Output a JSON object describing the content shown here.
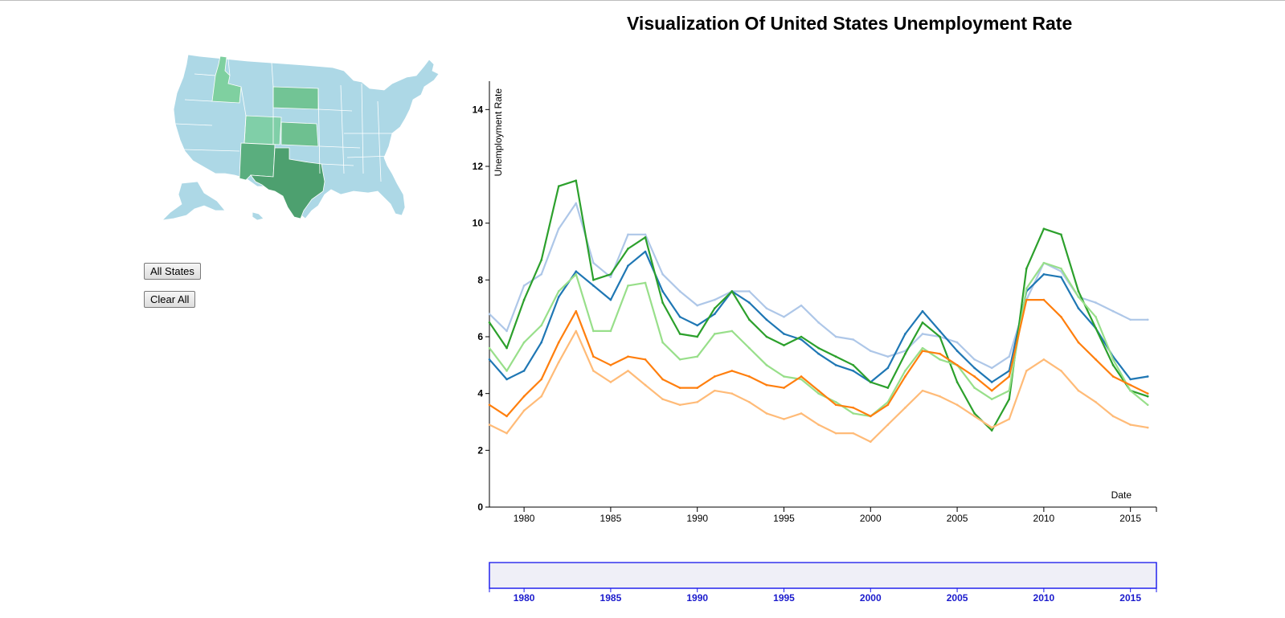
{
  "page": {
    "title": "Visualization Of United States Unemployment Rate"
  },
  "controls": {
    "all_states_label": "All States",
    "clear_all_label": "Clear All"
  },
  "map": {
    "base_color": "#add8e6",
    "selected_states": [
      {
        "name": "Idaho",
        "color": "#7fd0a0"
      },
      {
        "name": "Colorado",
        "color": "#80cfa8"
      },
      {
        "name": "South Dakota",
        "color": "#72c495"
      },
      {
        "name": "Kansas",
        "color": "#6ec090"
      },
      {
        "name": "New Mexico",
        "color": "#5aae7e"
      },
      {
        "name": "Texas",
        "color": "#4da06f"
      }
    ]
  },
  "chart_data": {
    "type": "line",
    "title": "Visualization Of United States Unemployment Rate",
    "xlabel": "Date",
    "ylabel": "Unemployment Rate",
    "xlim": [
      1978,
      2016.5
    ],
    "ylim": [
      0,
      15
    ],
    "x_ticks": [
      "1980",
      "1985",
      "1990",
      "1995",
      "2000",
      "2005",
      "2010",
      "2015"
    ],
    "y_ticks": [
      "0",
      "2",
      "4",
      "6",
      "8",
      "10",
      "12",
      "14"
    ],
    "x": [
      1978,
      1979,
      1980,
      1981,
      1982,
      1983,
      1984,
      1985,
      1986,
      1987,
      1988,
      1989,
      1990,
      1991,
      1992,
      1993,
      1994,
      1995,
      1996,
      1997,
      1998,
      1999,
      2000,
      2001,
      2002,
      2003,
      2004,
      2005,
      2006,
      2007,
      2008,
      2009,
      2010,
      2011,
      2012,
      2013,
      2014,
      2015,
      2016
    ],
    "series": [
      {
        "color": "#aec7e8",
        "values": [
          6.8,
          6.2,
          7.8,
          8.2,
          9.8,
          10.7,
          8.6,
          8.1,
          9.6,
          9.6,
          8.2,
          7.6,
          7.1,
          7.3,
          7.6,
          7.6,
          7.0,
          6.7,
          7.1,
          6.5,
          6.0,
          5.9,
          5.5,
          5.3,
          5.5,
          6.1,
          6.0,
          5.8,
          5.2,
          4.9,
          5.3,
          7.3,
          8.6,
          8.3,
          7.4,
          7.2,
          6.9,
          6.6,
          6.6
        ]
      },
      {
        "color": "#1f77b4",
        "values": [
          5.2,
          4.5,
          4.8,
          5.8,
          7.4,
          8.3,
          7.8,
          7.3,
          8.5,
          9.0,
          7.6,
          6.7,
          6.4,
          6.8,
          7.6,
          7.2,
          6.6,
          6.1,
          5.9,
          5.4,
          5.0,
          4.8,
          4.4,
          4.9,
          6.1,
          6.9,
          6.2,
          5.5,
          4.9,
          4.4,
          4.8,
          7.6,
          8.2,
          8.1,
          7.0,
          6.3,
          5.3,
          4.5,
          4.6
        ]
      },
      {
        "color": "#2ca02c",
        "values": [
          6.5,
          5.6,
          7.3,
          8.7,
          11.3,
          11.5,
          8.0,
          8.2,
          9.1,
          9.5,
          7.2,
          6.1,
          6.0,
          7.0,
          7.6,
          6.6,
          6.0,
          5.7,
          6.0,
          5.6,
          5.3,
          5.0,
          4.4,
          4.2,
          5.4,
          6.5,
          6.0,
          4.4,
          3.3,
          2.7,
          3.8,
          8.4,
          9.8,
          9.6,
          7.6,
          6.3,
          5.0,
          4.1,
          3.9
        ]
      },
      {
        "color": "#98df8a",
        "values": [
          5.6,
          4.8,
          5.8,
          6.4,
          7.6,
          8.2,
          6.2,
          6.2,
          7.8,
          7.9,
          5.8,
          5.2,
          5.3,
          6.1,
          6.2,
          5.6,
          5.0,
          4.6,
          4.5,
          4.0,
          3.7,
          3.3,
          3.2,
          3.7,
          4.8,
          5.6,
          5.2,
          5.0,
          4.2,
          3.8,
          4.1,
          7.7,
          8.6,
          8.4,
          7.4,
          6.7,
          5.2,
          4.1,
          3.6
        ]
      },
      {
        "color": "#ff7f0e",
        "values": [
          3.6,
          3.2,
          3.9,
          4.5,
          5.8,
          6.9,
          5.3,
          5.0,
          5.3,
          5.2,
          4.5,
          4.2,
          4.2,
          4.6,
          4.8,
          4.6,
          4.3,
          4.2,
          4.6,
          4.1,
          3.6,
          3.5,
          3.2,
          3.6,
          4.6,
          5.5,
          5.4,
          5.0,
          4.6,
          4.1,
          4.6,
          7.3,
          7.3,
          6.7,
          5.8,
          5.2,
          4.6,
          4.3,
          4.0
        ]
      },
      {
        "color": "#ffbb78",
        "values": [
          2.9,
          2.6,
          3.4,
          3.9,
          5.1,
          6.2,
          4.8,
          4.4,
          4.8,
          4.3,
          3.8,
          3.6,
          3.7,
          4.1,
          4.0,
          3.7,
          3.3,
          3.1,
          3.3,
          2.9,
          2.6,
          2.6,
          2.3,
          2.9,
          3.5,
          4.1,
          3.9,
          3.6,
          3.2,
          2.8,
          3.1,
          4.8,
          5.2,
          4.8,
          4.1,
          3.7,
          3.2,
          2.9,
          2.8
        ]
      }
    ],
    "brush": {
      "x_ticks": [
        "1980",
        "1985",
        "1990",
        "1995",
        "2000",
        "2005",
        "2010",
        "2015"
      ]
    }
  }
}
